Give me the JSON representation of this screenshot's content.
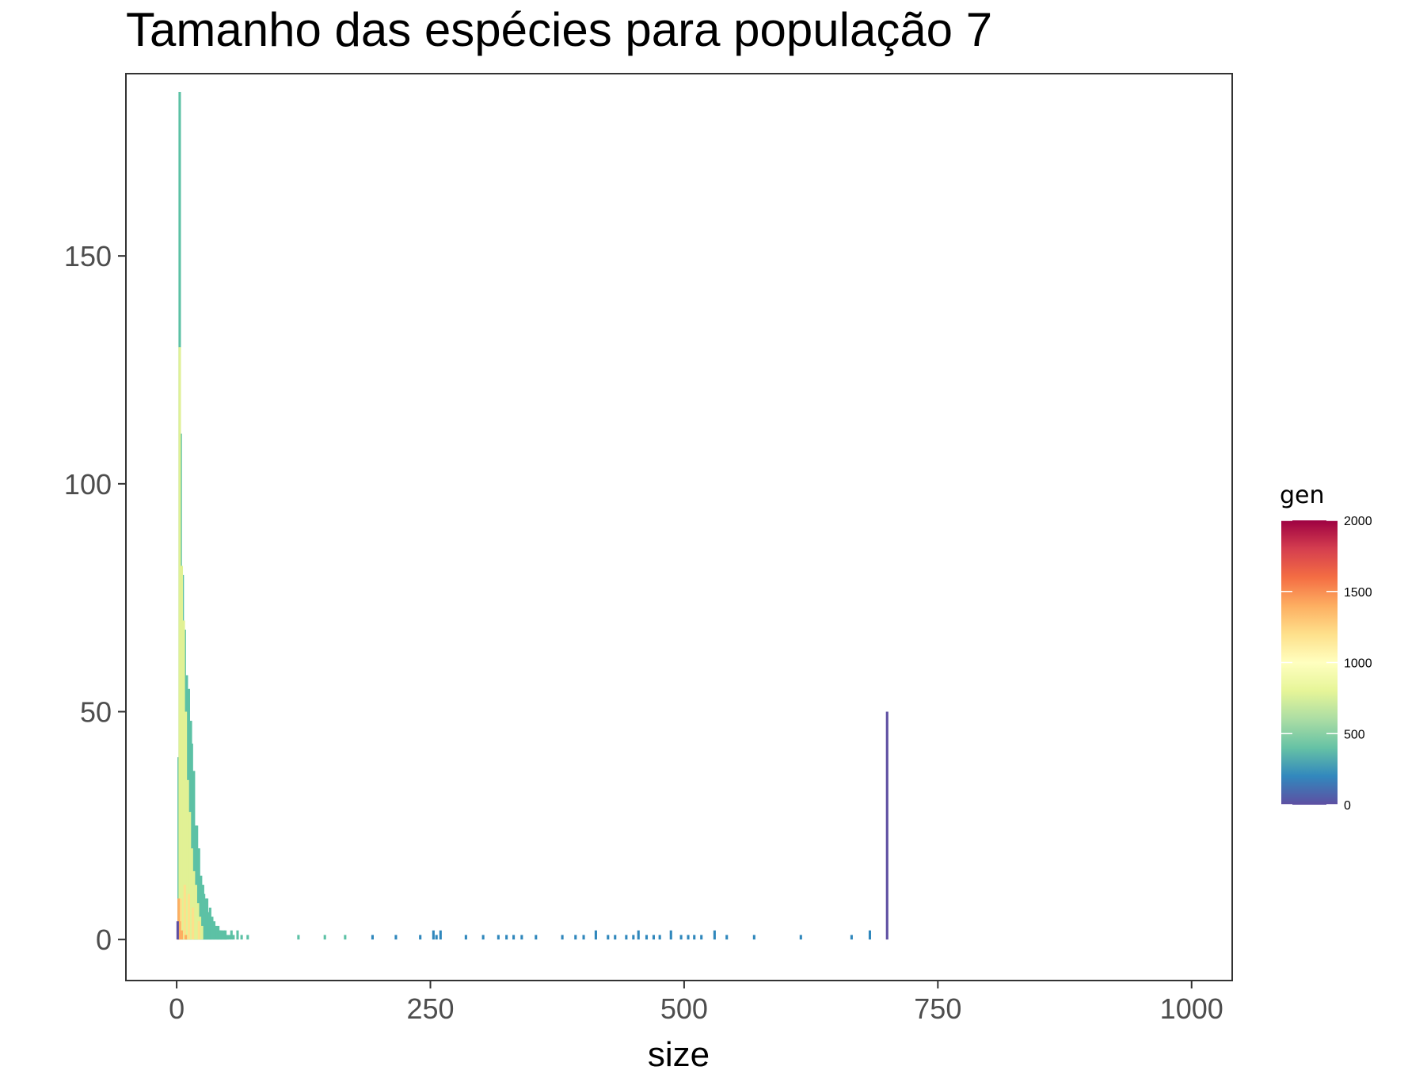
{
  "chart_data": {
    "type": "bar",
    "title": "Tamanho das espécies para população 7",
    "xlabel": "size",
    "ylabel": "",
    "xlim": [
      -50,
      1040
    ],
    "ylim": [
      -9,
      190
    ],
    "x_ticks": [
      0,
      250,
      500,
      750,
      1000
    ],
    "x_tick_labels": [
      "0",
      "250",
      "500",
      "750",
      "1000"
    ],
    "y_ticks": [
      0,
      50,
      100,
      150
    ],
    "y_tick_labels": [
      "0",
      "50",
      "100",
      "150"
    ],
    "grid": false,
    "legend": {
      "title": "gen",
      "placement": "right",
      "type": "colorbar",
      "range": [
        0,
        2000
      ],
      "ticks": [
        0,
        500,
        1000,
        1500,
        2000
      ],
      "tick_labels": [
        "0",
        "500",
        "1000",
        "1500",
        "2000"
      ],
      "palette": [
        "#5E4FA2",
        "#3288BD",
        "#66C2A5",
        "#ABDDA4",
        "#E6F598",
        "#FFFFBF",
        "#FEE08B",
        "#FDAE61",
        "#F46D43",
        "#D53E4F",
        "#9E0142"
      ]
    },
    "series": [
      {
        "gen": 500,
        "color": "#5CC1A5",
        "x": [
          2,
          3,
          4,
          5,
          6,
          7,
          8,
          9,
          10,
          11,
          12,
          13,
          14,
          15,
          16,
          17,
          18,
          19,
          20,
          21,
          22,
          23,
          24,
          25,
          26,
          27,
          28,
          29,
          30,
          31,
          32,
          33,
          34,
          35,
          36,
          37,
          38,
          39,
          40,
          41,
          42,
          43,
          44,
          45,
          46,
          47,
          48,
          49,
          50,
          52,
          54,
          56,
          60,
          64,
          70,
          120,
          146,
          166
        ],
        "values": [
          40,
          186,
          111,
          80,
          80,
          68,
          68,
          58,
          58,
          37,
          55,
          37,
          48,
          43,
          27,
          37,
          23,
          25,
          25,
          20,
          20,
          13,
          14,
          12,
          12,
          10,
          8,
          9,
          9,
          6,
          6,
          7,
          4,
          5,
          3,
          4,
          3,
          3,
          2,
          3,
          2,
          2,
          2,
          1,
          2,
          1,
          2,
          1,
          1,
          1,
          2,
          1,
          2,
          1,
          1,
          1,
          1,
          1
        ]
      },
      {
        "gen": 900,
        "color": "#E1F195",
        "x": [
          3,
          5,
          7,
          9,
          11,
          13,
          15,
          17,
          19,
          21,
          23,
          25
        ],
        "values": [
          130,
          82,
          70,
          50,
          35,
          28,
          20,
          15,
          12,
          8,
          5,
          3
        ]
      },
      {
        "gen": 1250,
        "color": "#FEE08B",
        "x": [
          4,
          8,
          12,
          16,
          22
        ],
        "values": [
          9,
          12,
          10,
          7,
          4
        ]
      },
      {
        "gen": 1500,
        "color": "#FDAE61",
        "x": [
          2,
          3,
          5,
          9
        ],
        "values": [
          9,
          4,
          2,
          1
        ]
      },
      {
        "gen": 200,
        "color": "#2F87BC",
        "x": [
          193,
          216,
          240,
          253,
          256,
          260,
          285,
          302,
          317,
          325,
          332,
          340,
          354,
          380,
          393,
          401,
          413,
          425,
          432,
          443,
          450,
          455,
          463,
          470,
          476,
          487,
          497,
          504,
          510,
          517,
          530,
          542,
          569,
          615,
          665,
          683
        ],
        "values": [
          1,
          1,
          1,
          2,
          1,
          2,
          1,
          1,
          1,
          1,
          1,
          1,
          1,
          1,
          1,
          1,
          2,
          1,
          1,
          1,
          1,
          2,
          1,
          1,
          1,
          2,
          1,
          1,
          1,
          1,
          2,
          1,
          1,
          1,
          1,
          2
        ]
      },
      {
        "gen": 0,
        "color": "#5E4FA2",
        "x": [
          1,
          700
        ],
        "values": [
          4,
          50
        ]
      }
    ]
  }
}
